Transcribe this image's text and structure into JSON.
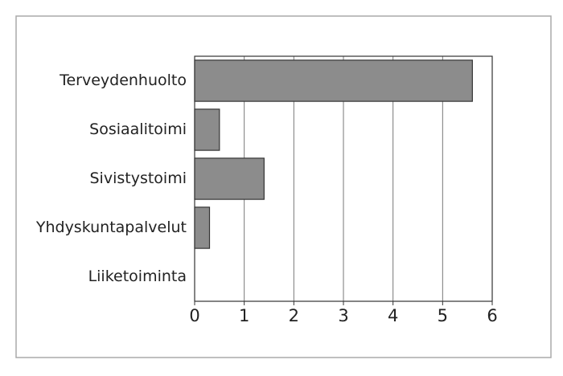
{
  "chart_data": {
    "type": "barh",
    "categories": [
      "Terveydenhuolto",
      "Sosiaalitoimi",
      "Sivistystoimi",
      "Yhdyskuntapalvelut",
      "Liiketoiminta"
    ],
    "values": [
      5.6,
      0.5,
      1.4,
      0.3,
      0
    ],
    "color": "#8c8c8c",
    "xlim": [
      0,
      6
    ],
    "xticks": [
      0,
      1,
      2,
      3,
      4,
      5,
      6
    ],
    "grid": true
  }
}
